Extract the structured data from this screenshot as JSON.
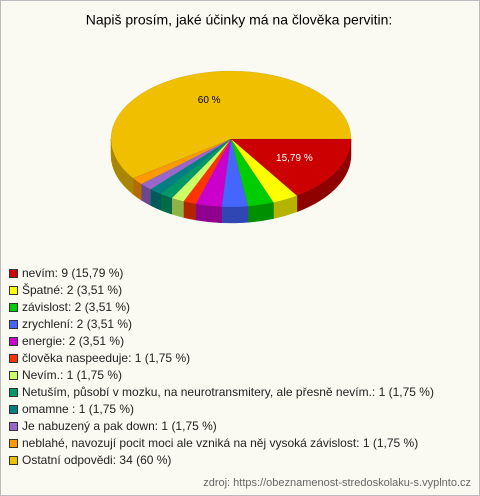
{
  "chart_data": {
    "type": "pie",
    "title": "Napiš prosím, jaké účinky má na člověka pervitin:",
    "categories": [
      "nevím: 9 (15,79 %)",
      "Špatné: 2 (3,51 %)",
      "závislost: 2 (3,51 %)",
      "zrychlení: 2 (3,51 %)",
      "energie: 2 (3,51 %)",
      "člověka naspeeduje: 1 (1,75 %)",
      "Nevím.: 1 (1,75 %)",
      "Netuším, působí v mozku, na neurotransmitery, ale přesně nevím.: 1 (1,75 %)",
      "omamne : 1 (1,75 %)",
      "Je nabuzený a pak down: 1 (1,75 %)",
      "neblahé, navozují pocit moci ale vzniká na něj vysoká závislost: 1 (1,75 %)",
      "Ostatní odpovědi: 34 (60 %)"
    ],
    "values": [
      15.79,
      3.51,
      3.51,
      3.51,
      3.51,
      1.75,
      1.75,
      1.75,
      1.75,
      1.75,
      1.75,
      60
    ],
    "value_labels": [
      "15,79 %",
      null,
      null,
      null,
      null,
      null,
      null,
      null,
      null,
      null,
      null,
      "60 %"
    ],
    "colors": [
      "#cc0000",
      "#ffff00",
      "#00cc00",
      "#4466ff",
      "#cc00cc",
      "#ff3300",
      "#ccff66",
      "#009966",
      "#008080",
      "#9966cc",
      "#ff9900",
      "#f0c000"
    ],
    "source": "zdroj: https://obeznamenost-stredoskolaku-s.vyplnto.cz"
  }
}
